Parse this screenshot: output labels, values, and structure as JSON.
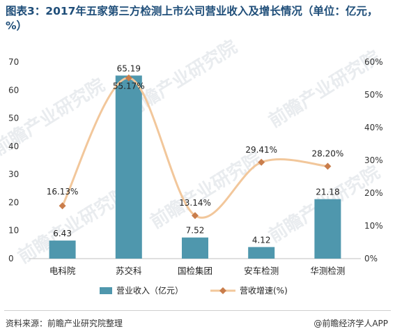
{
  "title": "图表3：2017年五家第三方检测上市公司营业收入及增长情况（单位：亿元，%）",
  "source": "资料来源：前瞻产业研究院整理",
  "brand": "@前瞻经济学人APP",
  "watermark": "前瞻产业研究院",
  "colors": {
    "bar": "#4f97ad",
    "line": "#f2c79b",
    "marker": "#c97d4b",
    "title": "#1f4e79"
  },
  "chart_data": {
    "type": "bar+line",
    "categories": [
      "电科院",
      "苏交科",
      "国检集团",
      "安车检测",
      "华测检测"
    ],
    "series": [
      {
        "name": "营业收入（亿元）",
        "type": "bar",
        "axis": "left",
        "values": [
          6.43,
          65.19,
          7.52,
          4.12,
          21.18
        ],
        "labels": [
          "6.43",
          "65.19",
          "7.52",
          "4.12",
          "21.18"
        ]
      },
      {
        "name": "营收增速(%)",
        "type": "line",
        "axis": "right",
        "values": [
          16.13,
          55.17,
          13.14,
          29.41,
          28.2
        ],
        "labels": [
          "16.13%",
          "55.17%",
          "13.14%",
          "29.41%",
          "28.20%"
        ]
      }
    ],
    "y_left": {
      "min": 0,
      "max": 70,
      "ticks": [
        "0",
        "10",
        "20",
        "30",
        "40",
        "50",
        "60",
        "70"
      ]
    },
    "y_right": {
      "min": 0,
      "max": 60,
      "ticks": [
        "0%",
        "10%",
        "20%",
        "30%",
        "40%",
        "50%",
        "60%"
      ]
    },
    "legend_position": "bottom",
    "grid": false
  }
}
